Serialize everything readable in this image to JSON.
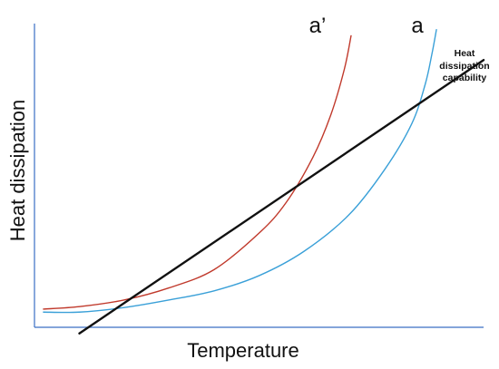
{
  "chart_data": {
    "type": "line",
    "xlabel": "Temperature",
    "ylabel": "Heat dissipation",
    "xlim": [
      0,
      100
    ],
    "ylim": [
      0,
      100
    ],
    "grid": false,
    "axis_color": "#3a6fc4",
    "series": [
      {
        "name": "a’",
        "color": "#c0392b",
        "points": [
          [
            2,
            6
          ],
          [
            10,
            6.8
          ],
          [
            20,
            9
          ],
          [
            30,
            13
          ],
          [
            40,
            19
          ],
          [
            50,
            31
          ],
          [
            56,
            41
          ],
          [
            62,
            56
          ],
          [
            66,
            70
          ],
          [
            69,
            85
          ],
          [
            70.5,
            96
          ]
        ]
      },
      {
        "name": "a",
        "color": "#3aa0d8",
        "points": [
          [
            2,
            5
          ],
          [
            10,
            5
          ],
          [
            20,
            6.5
          ],
          [
            30,
            9
          ],
          [
            40,
            12
          ],
          [
            50,
            17
          ],
          [
            60,
            25
          ],
          [
            70,
            37
          ],
          [
            78,
            52
          ],
          [
            84,
            67
          ],
          [
            87,
            80
          ],
          [
            88.5,
            90
          ],
          [
            89.5,
            98
          ]
        ]
      },
      {
        "name": "Heat dissipation capability",
        "color": "#111111",
        "points": [
          [
            10,
            -2
          ],
          [
            100,
            88
          ]
        ]
      }
    ],
    "annotations": {
      "capability_lines": [
        "Heat",
        "dissipation",
        "capability"
      ]
    }
  }
}
